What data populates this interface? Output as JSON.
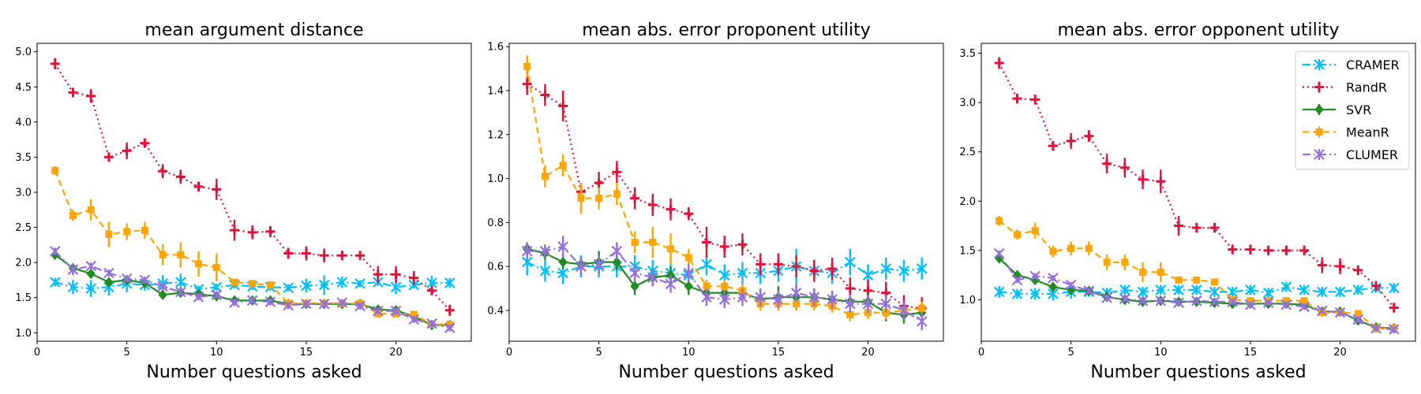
{
  "colors": {
    "CRAMER": "#00bfff",
    "RandR": "#dc143c",
    "SVR": "#228b22",
    "MeanR": "#ffa500",
    "CLUMER": "#9370db"
  },
  "chart_data": [
    {
      "type": "line",
      "title": "mean argument distance",
      "xlabel": "Number questions asked",
      "ylabel": "",
      "xlim": [
        0,
        24.2
      ],
      "ylim": [
        0.88,
        5.12
      ],
      "xticks": [
        0,
        5,
        10,
        15,
        20
      ],
      "yticks": [
        1.0,
        1.5,
        2.0,
        2.5,
        3.0,
        3.5,
        4.0,
        4.5,
        5.0
      ],
      "ytick_labels": [
        "1.0",
        "1.5",
        "2.0",
        "2.5",
        "3.0",
        "3.5",
        "4.0",
        "4.5",
        "5.0"
      ],
      "x": [
        1,
        2,
        3,
        4,
        5,
        6,
        7,
        8,
        9,
        10,
        11,
        12,
        13,
        14,
        15,
        16,
        17,
        18,
        19,
        20,
        21,
        22,
        23
      ],
      "series": [
        {
          "name": "CRAMER",
          "marker": "x",
          "dash": "dashdot",
          "values": [
            1.72,
            1.65,
            1.63,
            1.65,
            1.7,
            1.68,
            1.7,
            1.72,
            1.62,
            1.65,
            1.68,
            1.66,
            1.65,
            1.64,
            1.67,
            1.68,
            1.72,
            1.7,
            1.72,
            1.65,
            1.68,
            1.71,
            1.71
          ],
          "errors": [
            0.06,
            0.1,
            0.12,
            0.12,
            0.12,
            0.08,
            0.12,
            0.12,
            0.05,
            0.05,
            0.05,
            0.05,
            0.05,
            0.05,
            0.1,
            0.14,
            0.08,
            0.05,
            0.05,
            0.1,
            0.05,
            0.1,
            0.07
          ]
        },
        {
          "name": "RandR",
          "marker": "plus",
          "dash": "dot",
          "values": [
            4.83,
            4.42,
            4.37,
            3.5,
            3.59,
            3.7,
            3.3,
            3.22,
            3.08,
            3.04,
            2.46,
            2.43,
            2.44,
            2.13,
            2.13,
            2.1,
            2.1,
            2.1,
            1.83,
            1.83,
            1.78,
            1.6,
            1.32
          ],
          "errors": [
            0.08,
            0.05,
            0.1,
            0.05,
            0.12,
            0.05,
            0.1,
            0.1,
            0.07,
            0.15,
            0.15,
            0.1,
            0.08,
            0.08,
            0.1,
            0.1,
            0.05,
            0.05,
            0.12,
            0.12,
            0.1,
            0.05,
            0.08
          ]
        },
        {
          "name": "SVR",
          "marker": "diamond",
          "dash": "solid",
          "values": [
            2.11,
            1.92,
            1.84,
            1.72,
            1.75,
            1.71,
            1.54,
            1.57,
            1.55,
            1.52,
            1.46,
            1.46,
            1.46,
            1.41,
            1.41,
            1.41,
            1.41,
            1.41,
            1.33,
            1.32,
            1.23,
            1.11,
            1.11
          ],
          "errors": [
            0.05,
            0.05,
            0.05,
            0.05,
            0.05,
            0.05,
            0.05,
            0.05,
            0.05,
            0.05,
            0.05,
            0.05,
            0.05,
            0.05,
            0.05,
            0.05,
            0.05,
            0.05,
            0.05,
            0.05,
            0.05,
            0.05,
            0.05
          ]
        },
        {
          "name": "MeanR",
          "marker": "square",
          "dash": "dashed",
          "values": [
            3.31,
            2.67,
            2.75,
            2.4,
            2.44,
            2.46,
            2.11,
            2.11,
            1.98,
            1.93,
            1.72,
            1.7,
            1.68,
            1.42,
            1.42,
            1.42,
            1.42,
            1.42,
            1.27,
            1.27,
            1.26,
            1.12,
            1.12
          ],
          "errors": [
            0.06,
            0.08,
            0.15,
            0.18,
            0.12,
            0.12,
            0.15,
            0.18,
            0.18,
            0.2,
            0.05,
            0.05,
            0.05,
            0.05,
            0.05,
            0.05,
            0.05,
            0.05,
            0.05,
            0.05,
            0.05,
            0.05,
            0.05
          ]
        },
        {
          "name": "CLUMER",
          "marker": "x",
          "dash": "dashdot",
          "values": [
            2.16,
            1.9,
            1.95,
            1.85,
            1.77,
            1.75,
            1.66,
            1.58,
            1.51,
            1.54,
            1.43,
            1.46,
            1.44,
            1.39,
            1.41,
            1.41,
            1.43,
            1.38,
            1.31,
            1.31,
            1.19,
            1.13,
            1.07
          ],
          "errors": [
            0.05,
            0.08,
            0.05,
            0.05,
            0.05,
            0.05,
            0.05,
            0.05,
            0.05,
            0.05,
            0.05,
            0.05,
            0.05,
            0.05,
            0.05,
            0.05,
            0.05,
            0.05,
            0.05,
            0.05,
            0.05,
            0.05,
            0.05
          ]
        }
      ]
    },
    {
      "type": "line",
      "title": "mean abs. error proponent utility",
      "xlabel": "Number questions asked",
      "ylabel": "",
      "xlim": [
        0,
        24.2
      ],
      "ylim": [
        0.26,
        1.615
      ],
      "xticks": [
        0,
        5,
        10,
        15,
        20
      ],
      "yticks": [
        0.4,
        0.6,
        0.8,
        1.0,
        1.2,
        1.4,
        1.6
      ],
      "ytick_labels": [
        "0.4",
        "0.6",
        "0.8",
        "1.0",
        "1.2",
        "1.4",
        "1.6"
      ],
      "x": [
        1,
        2,
        3,
        4,
        5,
        6,
        7,
        8,
        9,
        10,
        11,
        12,
        13,
        14,
        15,
        16,
        17,
        18,
        19,
        20,
        21,
        22,
        23
      ],
      "series": [
        {
          "name": "CRAMER",
          "values": [
            0.62,
            0.58,
            0.57,
            0.6,
            0.6,
            0.6,
            0.6,
            0.58,
            0.57,
            0.56,
            0.61,
            0.56,
            0.57,
            0.57,
            0.58,
            0.6,
            0.58,
            0.57,
            0.62,
            0.56,
            0.59,
            0.58,
            0.59
          ],
          "errors": [
            0.06,
            0.05,
            0.05,
            0.05,
            0.05,
            0.05,
            0.05,
            0.05,
            0.05,
            0.05,
            0.05,
            0.05,
            0.05,
            0.05,
            0.05,
            0.08,
            0.05,
            0.05,
            0.06,
            0.05,
            0.05,
            0.05,
            0.05
          ]
        },
        {
          "name": "RandR",
          "values": [
            1.43,
            1.38,
            1.33,
            0.94,
            0.98,
            1.03,
            0.91,
            0.88,
            0.86,
            0.84,
            0.71,
            0.69,
            0.7,
            0.61,
            0.61,
            0.6,
            0.58,
            0.59,
            0.5,
            0.49,
            0.48,
            0.42,
            0.41
          ],
          "errors": [
            0.05,
            0.05,
            0.07,
            0.04,
            0.05,
            0.05,
            0.05,
            0.05,
            0.05,
            0.03,
            0.07,
            0.05,
            0.05,
            0.05,
            0.05,
            0.05,
            0.05,
            0.05,
            0.05,
            0.05,
            0.05,
            0.05,
            0.05
          ]
        },
        {
          "name": "SVR",
          "values": [
            0.68,
            0.66,
            0.62,
            0.61,
            0.62,
            0.62,
            0.51,
            0.55,
            0.56,
            0.51,
            0.48,
            0.48,
            0.48,
            0.45,
            0.46,
            0.46,
            0.46,
            0.45,
            0.44,
            0.44,
            0.39,
            0.38,
            0.39
          ],
          "errors": [
            0.03,
            0.03,
            0.03,
            0.03,
            0.05,
            0.04,
            0.04,
            0.04,
            0.04,
            0.04,
            0.04,
            0.04,
            0.04,
            0.04,
            0.05,
            0.06,
            0.04,
            0.03,
            0.03,
            0.04,
            0.04,
            0.04,
            0.04
          ]
        },
        {
          "name": "MeanR",
          "values": [
            1.51,
            1.01,
            1.06,
            0.91,
            0.91,
            0.93,
            0.71,
            0.71,
            0.68,
            0.64,
            0.51,
            0.51,
            0.49,
            0.43,
            0.43,
            0.43,
            0.43,
            0.42,
            0.38,
            0.39,
            0.39,
            0.4,
            0.41
          ],
          "errors": [
            0.05,
            0.05,
            0.05,
            0.07,
            0.05,
            0.05,
            0.05,
            0.07,
            0.07,
            0.04,
            0.03,
            0.03,
            0.03,
            0.03,
            0.03,
            0.03,
            0.03,
            0.03,
            0.03,
            0.03,
            0.03,
            0.03,
            0.03
          ]
        },
        {
          "name": "CLUMER",
          "values": [
            0.67,
            0.67,
            0.69,
            0.6,
            0.61,
            0.67,
            0.57,
            0.55,
            0.52,
            0.57,
            0.46,
            0.45,
            0.46,
            0.46,
            0.45,
            0.48,
            0.46,
            0.45,
            0.43,
            0.43,
            0.43,
            0.4,
            0.35
          ],
          "errors": [
            0.04,
            0.03,
            0.05,
            0.04,
            0.04,
            0.04,
            0.04,
            0.04,
            0.04,
            0.04,
            0.04,
            0.04,
            0.04,
            0.04,
            0.04,
            0.04,
            0.04,
            0.04,
            0.04,
            0.04,
            0.04,
            0.04,
            0.04
          ]
        }
      ]
    },
    {
      "type": "line",
      "title": "mean abs. error opponent utility",
      "xlabel": "Number questions asked",
      "ylabel": "",
      "xlim": [
        0,
        24.2
      ],
      "ylim": [
        0.58,
        3.6
      ],
      "xticks": [
        0,
        5,
        10,
        15,
        20
      ],
      "yticks": [
        1.0,
        1.5,
        2.0,
        2.5,
        3.0,
        3.5
      ],
      "ytick_labels": [
        "1.0",
        "1.5",
        "2.0",
        "2.5",
        "3.0",
        "3.5"
      ],
      "legend": "top-right",
      "x": [
        1,
        2,
        3,
        4,
        5,
        6,
        7,
        8,
        9,
        10,
        11,
        12,
        13,
        14,
        15,
        16,
        17,
        18,
        19,
        20,
        21,
        22,
        23
      ],
      "series": [
        {
          "name": "CRAMER",
          "values": [
            1.08,
            1.06,
            1.06,
            1.06,
            1.08,
            1.08,
            1.07,
            1.1,
            1.08,
            1.1,
            1.1,
            1.1,
            1.08,
            1.08,
            1.1,
            1.07,
            1.13,
            1.1,
            1.08,
            1.08,
            1.1,
            1.12,
            1.12
          ],
          "errors": [
            0.06,
            0.05,
            0.06,
            0.07,
            0.07,
            0.05,
            0.05,
            0.05,
            0.05,
            0.05,
            0.05,
            0.05,
            0.05,
            0.05,
            0.05,
            0.05,
            0.05,
            0.05,
            0.05,
            0.05,
            0.05,
            0.05,
            0.05
          ]
        },
        {
          "name": "RandR",
          "values": [
            3.4,
            3.04,
            3.03,
            2.56,
            2.61,
            2.66,
            2.38,
            2.34,
            2.22,
            2.2,
            1.75,
            1.73,
            1.73,
            1.51,
            1.51,
            1.5,
            1.5,
            1.5,
            1.35,
            1.34,
            1.3,
            1.14,
            0.92
          ],
          "errors": [
            0.06,
            0.05,
            0.05,
            0.05,
            0.08,
            0.06,
            0.1,
            0.1,
            0.1,
            0.12,
            0.1,
            0.05,
            0.05,
            0.05,
            0.05,
            0.05,
            0.05,
            0.05,
            0.08,
            0.08,
            0.05,
            0.05,
            0.05
          ]
        },
        {
          "name": "SVR",
          "values": [
            1.42,
            1.25,
            1.2,
            1.13,
            1.1,
            1.09,
            1.03,
            1.0,
            0.98,
            0.99,
            0.98,
            0.98,
            0.97,
            0.96,
            0.96,
            0.96,
            0.96,
            0.95,
            0.88,
            0.88,
            0.79,
            0.72,
            0.71
          ],
          "errors": [
            0.03,
            0.03,
            0.03,
            0.03,
            0.03,
            0.03,
            0.03,
            0.03,
            0.03,
            0.03,
            0.03,
            0.03,
            0.03,
            0.03,
            0.03,
            0.03,
            0.03,
            0.03,
            0.03,
            0.03,
            0.03,
            0.03,
            0.03
          ]
        },
        {
          "name": "MeanR",
          "values": [
            1.8,
            1.66,
            1.7,
            1.49,
            1.52,
            1.52,
            1.38,
            1.38,
            1.28,
            1.28,
            1.2,
            1.2,
            1.18,
            1.0,
            0.99,
            0.99,
            0.99,
            0.99,
            0.87,
            0.87,
            0.86,
            0.71,
            0.71
          ],
          "errors": [
            0.05,
            0.05,
            0.08,
            0.06,
            0.07,
            0.07,
            0.08,
            0.08,
            0.1,
            0.1,
            0.03,
            0.03,
            0.03,
            0.03,
            0.03,
            0.03,
            0.03,
            0.03,
            0.03,
            0.03,
            0.03,
            0.03,
            0.03
          ]
        },
        {
          "name": "CLUMER",
          "values": [
            1.47,
            1.2,
            1.24,
            1.22,
            1.15,
            1.09,
            1.02,
            1.01,
            0.99,
            0.99,
            0.97,
            0.99,
            0.98,
            0.98,
            0.95,
            0.97,
            0.95,
            0.93,
            0.89,
            0.87,
            0.8,
            0.71,
            0.7
          ],
          "errors": [
            0.03,
            0.03,
            0.03,
            0.03,
            0.03,
            0.03,
            0.03,
            0.03,
            0.03,
            0.03,
            0.03,
            0.03,
            0.03,
            0.03,
            0.03,
            0.03,
            0.03,
            0.03,
            0.03,
            0.03,
            0.03,
            0.03,
            0.03
          ]
        }
      ]
    }
  ]
}
